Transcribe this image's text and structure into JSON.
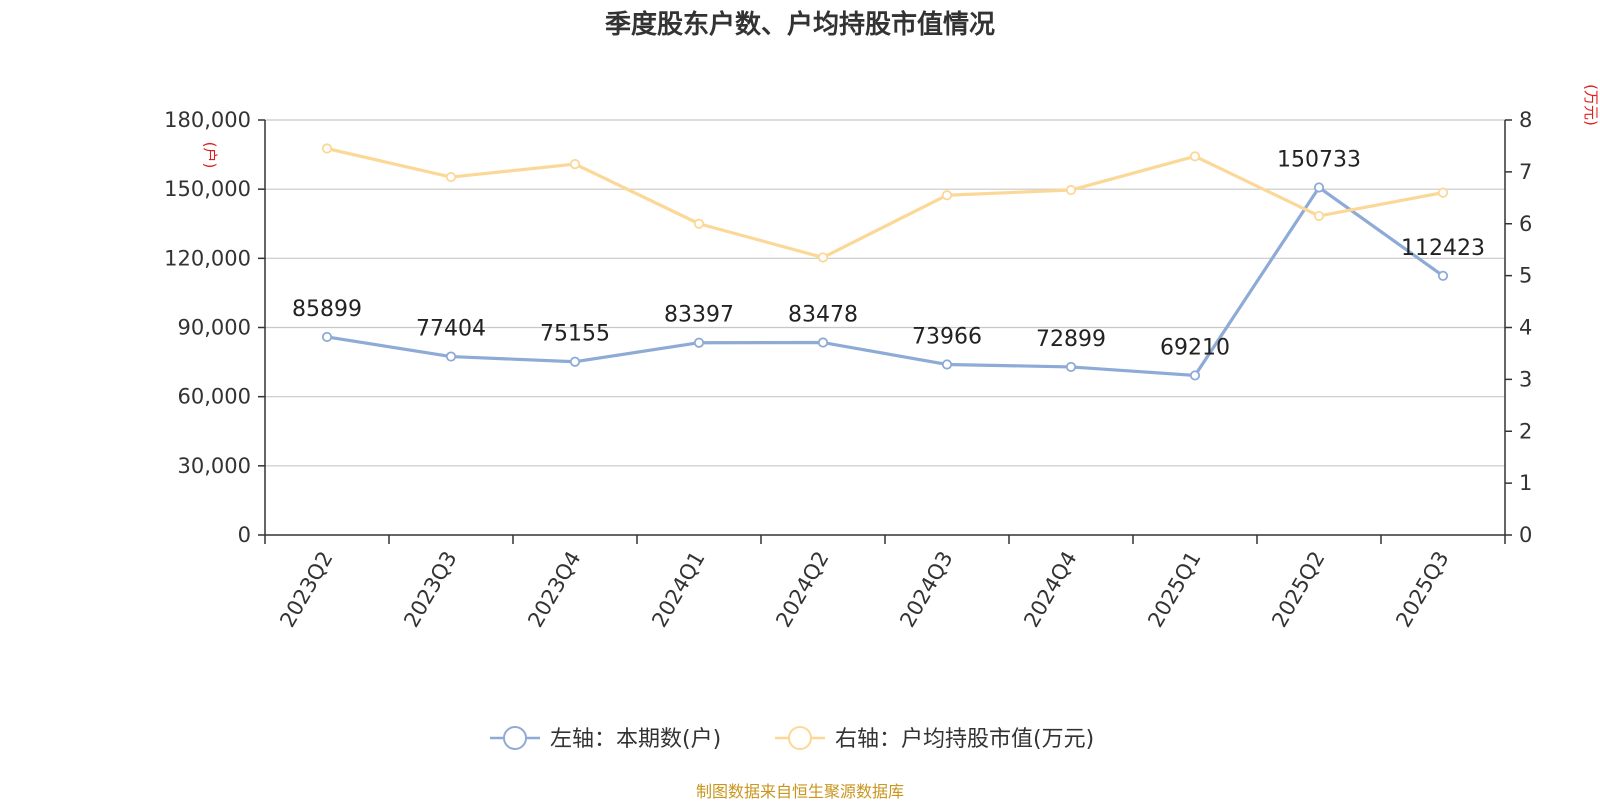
{
  "title": "季度股东户数、户均持股市值情况",
  "source": "制图数据来自恒生聚源数据库",
  "chart_data": {
    "type": "line",
    "title": "季度股东户数、户均持股市值情况",
    "categories": [
      "2023Q2",
      "2023Q3",
      "2023Q4",
      "2024Q1",
      "2024Q2",
      "2024Q3",
      "2024Q4",
      "2025Q1",
      "2025Q2",
      "2025Q3"
    ],
    "left_axis": {
      "unit": "(户)",
      "ylim": [
        0,
        180000
      ],
      "ticks": [
        0,
        30000,
        60000,
        90000,
        120000,
        150000,
        180000
      ],
      "tick_labels": [
        "0",
        "30,000",
        "60,000",
        "90,000",
        "120,000",
        "150,000",
        "180,000"
      ]
    },
    "right_axis": {
      "unit": "(万元)",
      "ylim": [
        0,
        8
      ],
      "ticks": [
        0,
        1,
        2,
        3,
        4,
        5,
        6,
        7,
        8
      ],
      "tick_labels": [
        "0",
        "1",
        "2",
        "3",
        "4",
        "5",
        "6",
        "7",
        "8"
      ]
    },
    "series": [
      {
        "name": "左轴：本期数(户)",
        "axis": "left",
        "color": "#8eaad6",
        "values": [
          85899,
          77404,
          75155,
          83397,
          83478,
          73966,
          72899,
          69210,
          150733,
          112423
        ],
        "labels": [
          "85899",
          "77404",
          "75155",
          "83397",
          "83478",
          "73966",
          "72899",
          "69210",
          "150733",
          "112423"
        ]
      },
      {
        "name": "右轴：户均持股市值(万元)",
        "axis": "right",
        "color": "#fbd897",
        "values": [
          7.45,
          6.9,
          7.15,
          6.0,
          5.35,
          6.55,
          6.65,
          7.3,
          6.15,
          6.6
        ]
      }
    ],
    "grid": true,
    "legend_position": "bottom-center"
  }
}
